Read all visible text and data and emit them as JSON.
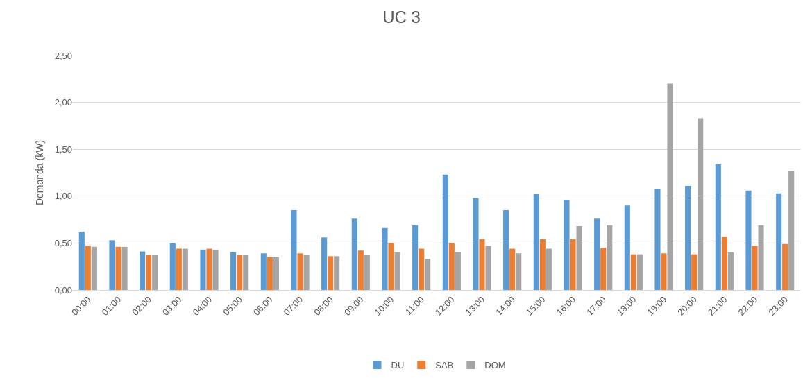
{
  "chart_data": {
    "type": "bar",
    "title": "UC 3",
    "ylabel": "Demanda (kW)",
    "categories": [
      "00:00",
      "01:00",
      "02:00",
      "03:00",
      "04:00",
      "05:00",
      "06:00",
      "07:00",
      "08:00",
      "09:00",
      "10:00",
      "11:00",
      "12:00",
      "13:00",
      "14:00",
      "15:00",
      "16:00",
      "17:00",
      "18:00",
      "19:00",
      "20:00",
      "21:00",
      "22:00",
      "23:00"
    ],
    "series": [
      {
        "name": "DU",
        "color": "#5b9bd5",
        "values": [
          0.62,
          0.53,
          0.41,
          0.5,
          0.43,
          0.4,
          0.39,
          0.85,
          0.56,
          0.76,
          0.66,
          0.69,
          1.23,
          0.98,
          0.85,
          1.02,
          0.96,
          0.76,
          0.9,
          1.08,
          1.11,
          1.34,
          1.06,
          1.03
        ]
      },
      {
        "name": "SAB",
        "color": "#ed7d31",
        "values": [
          0.47,
          0.46,
          0.37,
          0.44,
          0.44,
          0.37,
          0.35,
          0.39,
          0.36,
          0.42,
          0.5,
          0.44,
          0.5,
          0.54,
          0.44,
          0.54,
          0.54,
          0.45,
          0.38,
          0.39,
          0.38,
          0.57,
          0.47,
          0.49
        ]
      },
      {
        "name": "DOM",
        "color": "#a5a5a5",
        "values": [
          0.46,
          0.46,
          0.37,
          0.44,
          0.43,
          0.37,
          0.35,
          0.37,
          0.36,
          0.37,
          0.4,
          0.33,
          0.4,
          0.47,
          0.39,
          0.44,
          0.68,
          0.69,
          0.38,
          2.2,
          1.83,
          0.4,
          0.69,
          1.27
        ]
      }
    ],
    "ylim": [
      0,
      2.5
    ],
    "yticks": [
      {
        "value": 0,
        "label": "0,00"
      },
      {
        "value": 0.5,
        "label": "0,50"
      },
      {
        "value": 1,
        "label": "1,00"
      },
      {
        "value": 1.5,
        "label": "1,50"
      },
      {
        "value": 2,
        "label": "2,00"
      },
      {
        "value": 2.5,
        "label": "2,50"
      }
    ],
    "grid": "y",
    "legend": "bottom"
  }
}
